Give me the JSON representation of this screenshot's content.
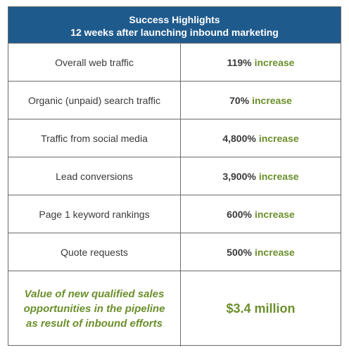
{
  "header": {
    "title": "Success Highlights",
    "subtitle": "12 weeks after launching inbound marketing"
  },
  "rows": [
    {
      "metric": "Overall web traffic",
      "value": "119%",
      "word": "increase"
    },
    {
      "metric": "Organic (unpaid) search traffic",
      "value": "70%",
      "word": "increase"
    },
    {
      "metric": "Traffic from social media",
      "value": "4,800%",
      "word": "increase"
    },
    {
      "metric": "Lead conversions",
      "value": "3,900%",
      "word": "increase"
    },
    {
      "metric": "Page 1 keyword rankings",
      "value": "600%",
      "word": "increase"
    },
    {
      "metric": "Quote requests",
      "value": "500%",
      "word": "increase"
    }
  ],
  "final": {
    "metric_lines": [
      "Value of new qualified sales",
      "opportunities in the pipeline",
      "as result of inbound efforts"
    ],
    "value": "$3.4 million"
  },
  "colors": {
    "header_bg": "#1f5a8c",
    "accent_green": "#6b8f2b",
    "border": "#6b6b6b"
  }
}
